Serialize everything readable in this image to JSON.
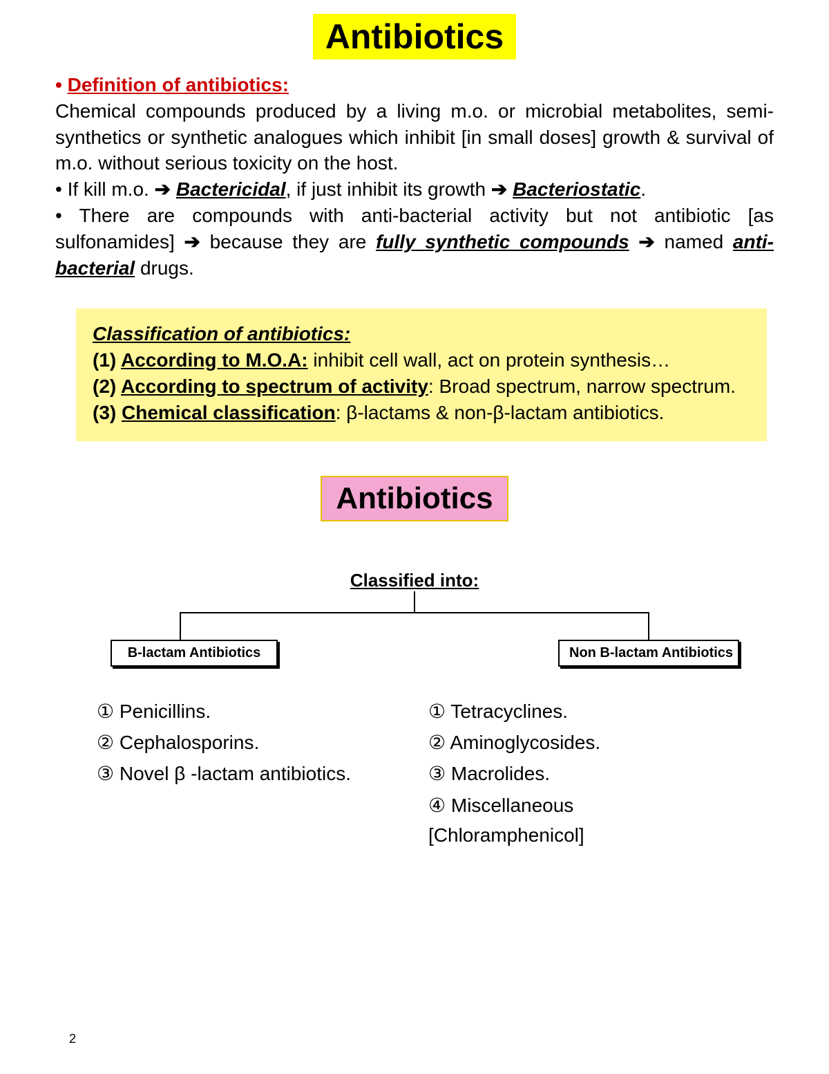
{
  "title": "Antibiotics",
  "definition": {
    "heading_prefix": "• ",
    "heading": "Definition of antibiotics",
    "heading_colon": ":",
    "body": "Chemical compounds produced by a living m.o.  or microbial metabolites, semi-synthetics or synthetic analogues which inhibit [in small doses] growth & survival of m.o. without serious toxicity on the host.",
    "line2_prefix": "• If kill m.o. ",
    "arrow": "➔",
    "bactericidal": "Bactericidal",
    "line2_mid": ", if just inhibit its growth ",
    "bacteriostatic": "Bacteriostatic",
    "line2_end": ".",
    "line3_a": "• There are compounds with anti-bacterial activity but not antibiotic [as sulfonamides] ",
    "line3_b": " because they are ",
    "fully_synth": "fully synthetic compounds",
    "line3_c": " ",
    "line3_d": " named ",
    "anti_bacterial": "anti-bacterial",
    "line3_e": " drugs."
  },
  "classification_box": {
    "heading": "Classification of antibiotics:",
    "item1_num": "(1) ",
    "item1_label": "According to M.O.A:",
    "item1_text": " inhibit cell wall, act on protein synthesis…",
    "item2_num": "(2) ",
    "item2_label": "According to spectrum of activity",
    "item2_text": ": Broad spectrum, narrow spectrum.",
    "item3_num": "(3) ",
    "item3_label": "Chemical classification",
    "item3_text": ": β-lactams & non-β-lactam antibiotics."
  },
  "subheading": "Antibiotics",
  "diagram": {
    "classified_into": "Classified into:",
    "left_node": "B-lactam Antibiotics",
    "right_node": "Non B-lactam Antibiotics",
    "left_list": {
      "i1": "① Penicillins.",
      "i2": "② Cephalosporins.",
      "i3": "③ Novel β -lactam antibiotics."
    },
    "right_list": {
      "i1": "① Tetracyclines.",
      "i2": "② Aminoglycosides.",
      "i3": "③ Macrolides.",
      "i4": "④ Miscellaneous [Chloramphenicol]"
    }
  },
  "page_number": "2",
  "colors": {
    "title_bg": "#ffff00",
    "heading_color": "#cc0000",
    "class_box_bg": "#fff79a",
    "sub_bg": "#f4a7d1",
    "sub_border": "#e6c200",
    "text": "#000000",
    "page_bg": "#ffffff"
  }
}
